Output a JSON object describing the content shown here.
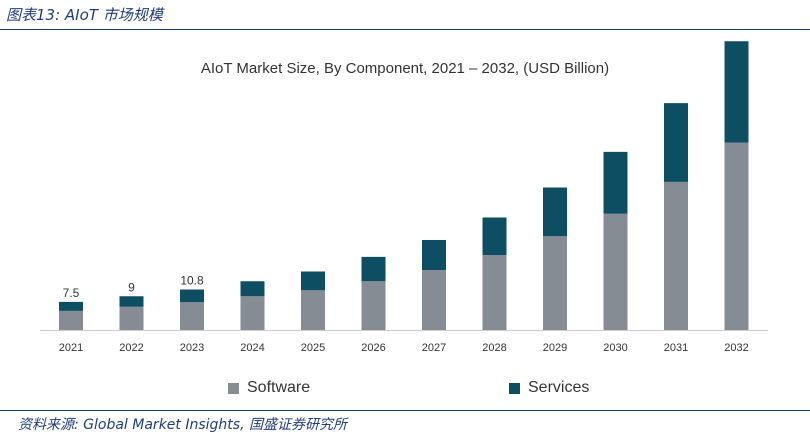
{
  "header": {
    "caption": "图表13: AIoT 市场规模"
  },
  "footer": {
    "source": "资料来源: Global Market Insights, 国盛证券研究所"
  },
  "colors": {
    "software": "#868c94",
    "services": "#0d4e63",
    "axis": "#cccccc",
    "text": "#333333",
    "rule": "#1f3d7a"
  },
  "chart_data": {
    "type": "bar",
    "stacked": true,
    "title": "AIoT Market Size, By Component, 2021 – 2032, (USD Billion)",
    "categories": [
      "2021",
      "2022",
      "2023",
      "2024",
      "2025",
      "2026",
      "2027",
      "2028",
      "2029",
      "2030",
      "2031",
      "2032"
    ],
    "series": [
      {
        "name": "Software",
        "values": [
          5.1,
          6.2,
          7.4,
          9.0,
          10.6,
          13.0,
          16.0,
          20.0,
          25.0,
          31.0,
          39.5,
          50.0
        ]
      },
      {
        "name": "Services",
        "values": [
          2.4,
          2.8,
          3.4,
          4.0,
          5.0,
          6.5,
          8.0,
          10.0,
          13.0,
          16.5,
          21.0,
          27.0
        ]
      }
    ],
    "data_labels": [
      "7.5",
      "9",
      "10.8",
      "",
      "",
      "",
      "",
      "",
      "",
      "",
      "",
      ""
    ],
    "ylim": [
      0,
      80
    ],
    "grid": false,
    "legend_position": "bottom"
  }
}
